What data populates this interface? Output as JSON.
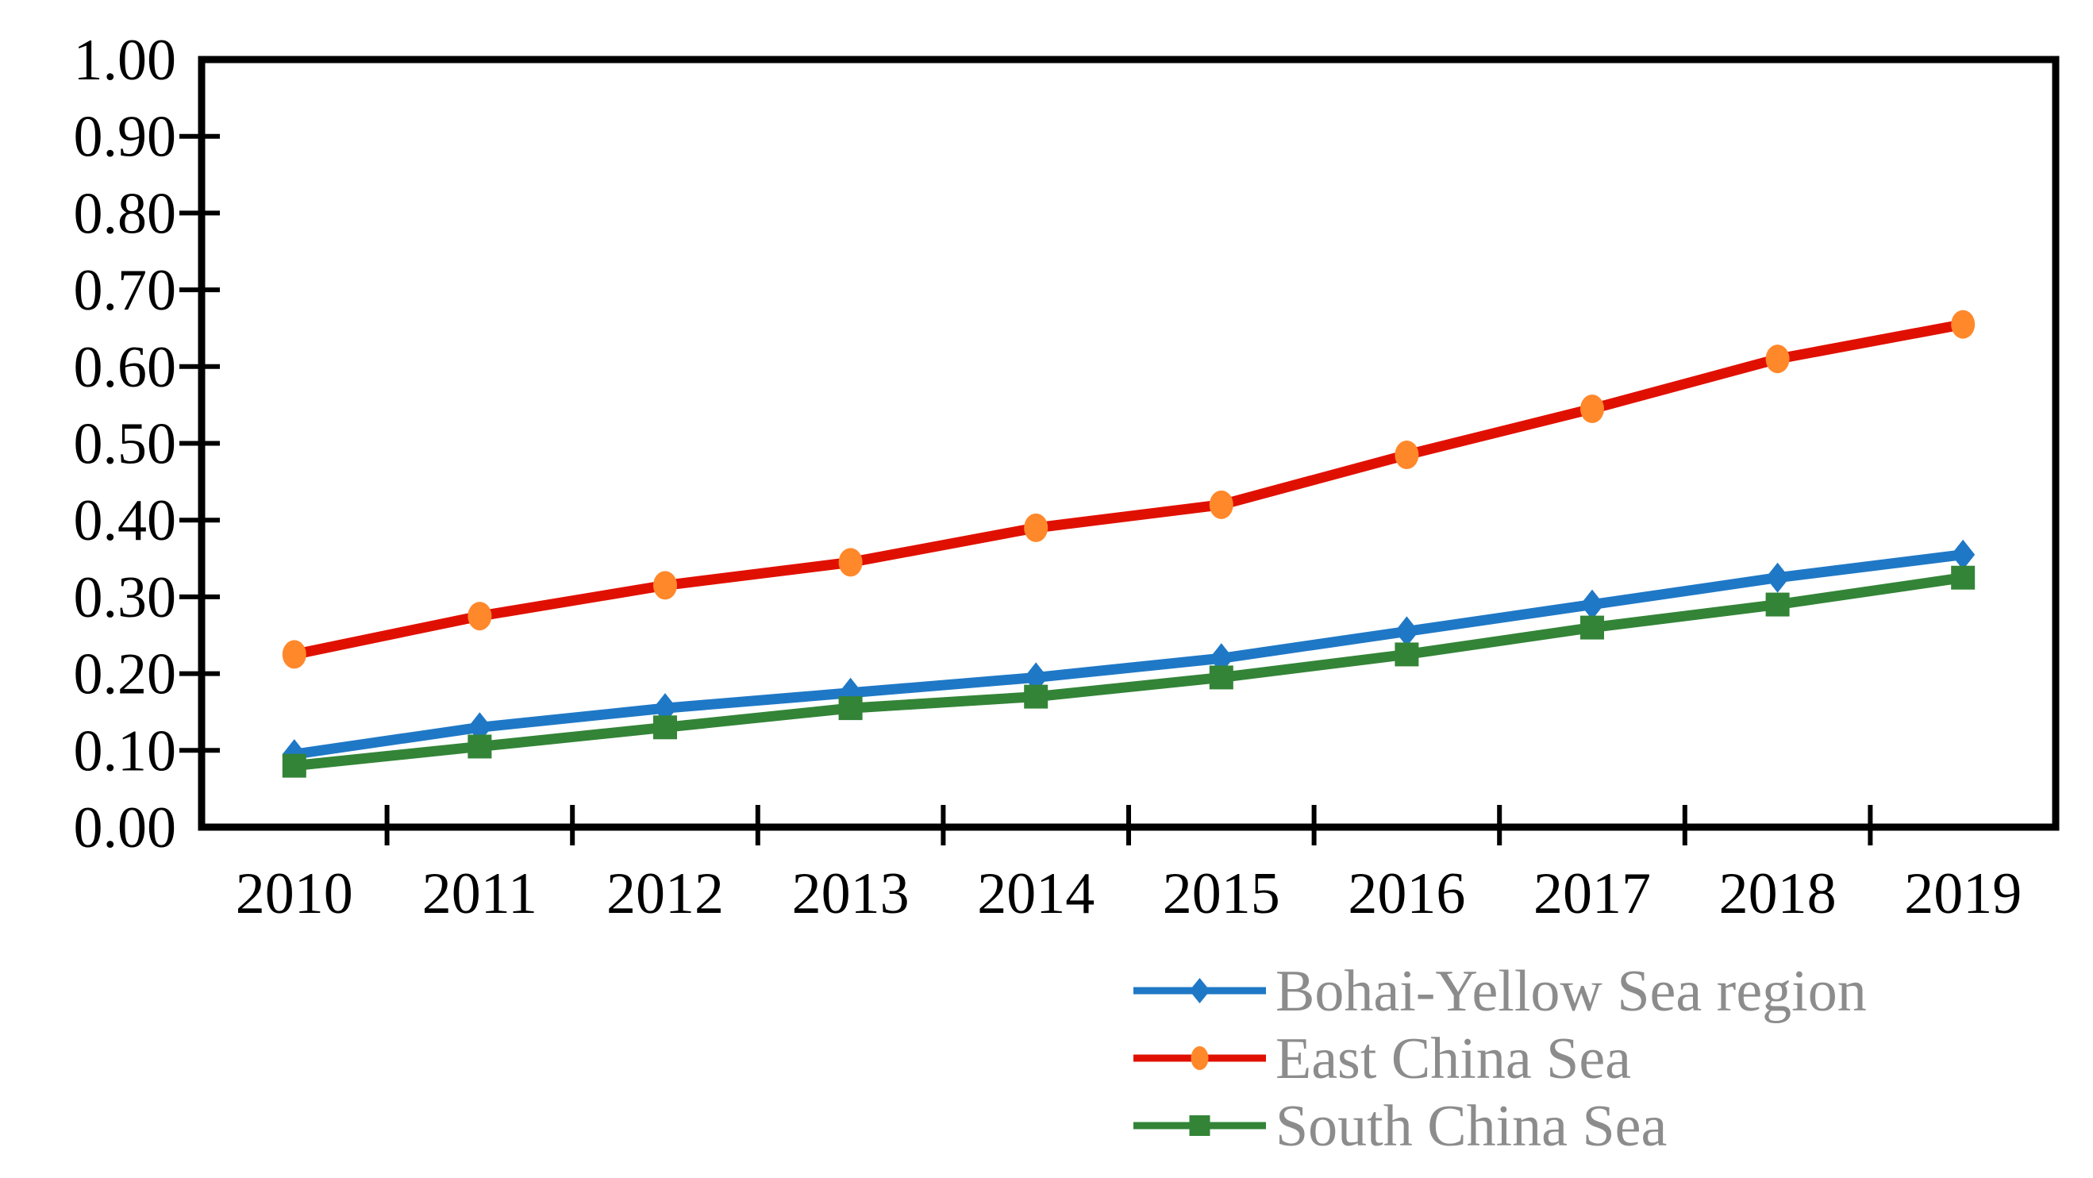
{
  "page": {
    "background_color": "#FFFFFF"
  },
  "chart_data": {
    "type": "line",
    "categories": [
      "2010",
      "2011",
      "2012",
      "2013",
      "2014",
      "2015",
      "2016",
      "2017",
      "2018",
      "2019"
    ],
    "series": [
      {
        "name": "Bohai-Yellow Sea region",
        "line_color": "#1F78C6",
        "marker": "diamond",
        "marker_color": "#1F78C6",
        "values": [
          0.095,
          0.13,
          0.155,
          0.175,
          0.195,
          0.22,
          0.255,
          0.29,
          0.325,
          0.355
        ]
      },
      {
        "name": "East China Sea",
        "line_color": "#E01000",
        "marker": "circle",
        "marker_color": "#FF882B",
        "values": [
          0.225,
          0.275,
          0.315,
          0.345,
          0.39,
          0.42,
          0.485,
          0.545,
          0.61,
          0.655
        ]
      },
      {
        "name": "South China Sea",
        "line_color": "#338437",
        "marker": "square",
        "marker_color": "#338437",
        "values": [
          0.08,
          0.105,
          0.13,
          0.155,
          0.17,
          0.195,
          0.225,
          0.26,
          0.29,
          0.325
        ]
      }
    ],
    "ylim": [
      0.0,
      1.0
    ],
    "ytick_step": 0.1,
    "ytick_labels": [
      "0.00",
      "0.10",
      "0.20",
      "0.30",
      "0.40",
      "0.50",
      "0.60",
      "0.70",
      "0.80",
      "0.90",
      "1.00"
    ],
    "grid": false,
    "legend_position": "bottom-right",
    "legend_entries": [
      "Bohai-Yellow Sea region",
      "East China Sea",
      "South China Sea"
    ],
    "legend_text_color": "#8C8C8C",
    "axis_color": "#000000",
    "tick_label_color": "#000000"
  }
}
